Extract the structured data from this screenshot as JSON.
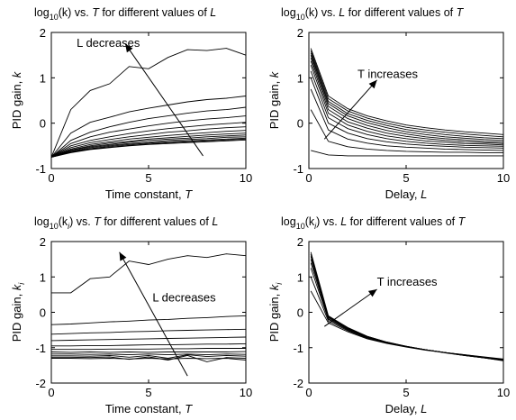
{
  "chart_data": [
    {
      "type": "line",
      "title": {
        "pre": "log",
        "sub": "10",
        "mid": "(k) vs. ",
        "v1": "T",
        "post": " for different values of ",
        "v2": "L"
      },
      "xlabel": {
        "text": "Time constant, ",
        "var": "T",
        "sub": ""
      },
      "ylabel": {
        "text": "PID gain, ",
        "var": "k",
        "sub": ""
      },
      "xlim": [
        0,
        10
      ],
      "ylim": [
        -1,
        2
      ],
      "xticks": [
        "0",
        "5",
        "10"
      ],
      "yticks": [
        "-1",
        "0",
        "1",
        "2"
      ],
      "annotation": "L decreases",
      "x": [
        0,
        1,
        2,
        3,
        4,
        5,
        6,
        7,
        8,
        9,
        10
      ],
      "series": [
        {
          "values": [
            -0.75,
            0.3,
            0.72,
            0.87,
            1.25,
            1.2,
            1.45,
            1.62,
            1.6,
            1.65,
            1.5
          ]
        },
        {
          "values": [
            -0.75,
            -0.22,
            0.02,
            0.13,
            0.25,
            0.33,
            0.4,
            0.47,
            0.52,
            0.55,
            0.6
          ]
        },
        {
          "values": [
            -0.75,
            -0.38,
            -0.2,
            -0.08,
            0.02,
            0.1,
            0.16,
            0.22,
            0.27,
            0.3,
            0.35
          ]
        },
        {
          "values": [
            -0.75,
            -0.45,
            -0.3,
            -0.2,
            -0.13,
            -0.06,
            0.0,
            0.05,
            0.09,
            0.12,
            0.16
          ]
        },
        {
          "values": [
            -0.75,
            -0.5,
            -0.38,
            -0.3,
            -0.23,
            -0.17,
            -0.12,
            -0.08,
            -0.04,
            -0.01,
            0.02
          ]
        },
        {
          "values": [
            -0.75,
            -0.54,
            -0.43,
            -0.36,
            -0.3,
            -0.25,
            -0.2,
            -0.17,
            -0.13,
            -0.1,
            -0.08
          ]
        },
        {
          "values": [
            -0.75,
            -0.57,
            -0.47,
            -0.41,
            -0.35,
            -0.31,
            -0.27,
            -0.24,
            -0.21,
            -0.18,
            -0.16
          ]
        },
        {
          "values": [
            -0.75,
            -0.59,
            -0.5,
            -0.44,
            -0.4,
            -0.35,
            -0.32,
            -0.29,
            -0.26,
            -0.24,
            -0.22
          ]
        },
        {
          "values": [
            -0.75,
            -0.6,
            -0.52,
            -0.47,
            -0.42,
            -0.38,
            -0.35,
            -0.33,
            -0.3,
            -0.28,
            -0.26
          ]
        },
        {
          "values": [
            -0.75,
            -0.62,
            -0.54,
            -0.49,
            -0.45,
            -0.42,
            -0.38,
            -0.36,
            -0.34,
            -0.31,
            -0.3
          ]
        },
        {
          "values": [
            -0.75,
            -0.63,
            -0.56,
            -0.51,
            -0.47,
            -0.44,
            -0.41,
            -0.39,
            -0.37,
            -0.35,
            -0.33
          ]
        },
        {
          "values": [
            -0.75,
            -0.64,
            -0.57,
            -0.53,
            -0.49,
            -0.46,
            -0.43,
            -0.41,
            -0.39,
            -0.37,
            -0.35
          ]
        },
        {
          "values": [
            -0.75,
            -0.65,
            -0.58,
            -0.54,
            -0.5,
            -0.47,
            -0.45,
            -0.43,
            -0.41,
            -0.39,
            -0.37
          ]
        }
      ]
    },
    {
      "type": "line",
      "title": {
        "pre": "log",
        "sub": "10",
        "mid": "(k) vs. ",
        "v1": "L",
        "post": " for different values of ",
        "v2": "T"
      },
      "xlabel": {
        "text": "Delay, ",
        "var": "L",
        "sub": ""
      },
      "ylabel": {
        "text": "PID gain, ",
        "var": "k",
        "sub": ""
      },
      "xlim": [
        0,
        10
      ],
      "ylim": [
        -1,
        2
      ],
      "xticks": [
        "0",
        "5",
        "10"
      ],
      "yticks": [
        "-1",
        "0",
        "1",
        "2"
      ],
      "annotation": "T increases",
      "x": [
        0.1,
        1,
        2,
        3,
        4,
        5,
        6,
        7,
        8,
        9,
        10
      ],
      "series": [
        {
          "values": [
            -0.6,
            -0.7,
            -0.72,
            -0.72,
            -0.72,
            -0.72,
            -0.72,
            -0.72,
            -0.72,
            -0.72,
            -0.72
          ]
        },
        {
          "values": [
            0.3,
            -0.4,
            -0.52,
            -0.57,
            -0.6,
            -0.62,
            -0.63,
            -0.64,
            -0.64,
            -0.65,
            -0.65
          ]
        },
        {
          "values": [
            0.75,
            -0.15,
            -0.35,
            -0.44,
            -0.5,
            -0.53,
            -0.55,
            -0.57,
            -0.58,
            -0.59,
            -0.6
          ]
        },
        {
          "values": [
            1.0,
            0.0,
            -0.22,
            -0.34,
            -0.41,
            -0.46,
            -0.49,
            -0.51,
            -0.53,
            -0.54,
            -0.55
          ]
        },
        {
          "values": [
            1.15,
            0.12,
            -0.12,
            -0.25,
            -0.34,
            -0.4,
            -0.44,
            -0.47,
            -0.49,
            -0.5,
            -0.51
          ]
        },
        {
          "values": [
            1.28,
            0.22,
            -0.04,
            -0.18,
            -0.28,
            -0.34,
            -0.39,
            -0.42,
            -0.45,
            -0.46,
            -0.48
          ]
        },
        {
          "values": [
            1.37,
            0.3,
            0.03,
            -0.11,
            -0.22,
            -0.29,
            -0.34,
            -0.38,
            -0.41,
            -0.43,
            -0.45
          ]
        },
        {
          "values": [
            1.44,
            0.37,
            0.1,
            -0.05,
            -0.16,
            -0.24,
            -0.3,
            -0.34,
            -0.37,
            -0.4,
            -0.42
          ]
        },
        {
          "values": [
            1.5,
            0.43,
            0.16,
            0.01,
            -0.1,
            -0.19,
            -0.25,
            -0.3,
            -0.33,
            -0.36,
            -0.38
          ]
        },
        {
          "values": [
            1.55,
            0.48,
            0.21,
            0.06,
            -0.05,
            -0.14,
            -0.2,
            -0.25,
            -0.29,
            -0.32,
            -0.34
          ]
        },
        {
          "values": [
            1.6,
            0.54,
            0.27,
            0.11,
            0.0,
            -0.09,
            -0.15,
            -0.2,
            -0.24,
            -0.27,
            -0.3
          ]
        },
        {
          "values": [
            1.65,
            0.6,
            0.32,
            0.16,
            0.05,
            -0.04,
            -0.1,
            -0.15,
            -0.19,
            -0.22,
            -0.25
          ]
        }
      ]
    },
    {
      "type": "line",
      "title": {
        "pre": "log",
        "sub": "10",
        "mid": "(k",
        "msub": "i",
        "mid2": ") vs. ",
        "v1": "T",
        "post": " for different values of ",
        "v2": "L"
      },
      "xlabel": {
        "text": "Time constant, ",
        "var": "T",
        "sub": ""
      },
      "ylabel": {
        "text": "PID gain, ",
        "var": "k",
        "sub": "i"
      },
      "xlim": [
        0,
        10
      ],
      "ylim": [
        -2,
        2
      ],
      "xticks": [
        "0",
        "5",
        "10"
      ],
      "yticks": [
        "-2",
        "-1",
        "0",
        "1",
        "2"
      ],
      "annotation": "L decreases",
      "x": [
        0,
        1,
        2,
        3,
        4,
        5,
        6,
        7,
        8,
        9,
        10
      ],
      "series": [
        {
          "values": [
            0.55,
            0.55,
            0.95,
            1.0,
            1.45,
            1.35,
            1.5,
            1.6,
            1.55,
            1.65,
            1.6
          ]
        },
        {
          "values": [
            -0.35,
            -0.33,
            -0.3,
            -0.27,
            -0.25,
            -0.22,
            -0.2,
            -0.17,
            -0.15,
            -0.12,
            -0.1
          ]
        },
        {
          "values": [
            -0.62,
            -0.6,
            -0.58,
            -0.57,
            -0.55,
            -0.54,
            -0.52,
            -0.51,
            -0.5,
            -0.49,
            -0.48
          ]
        },
        {
          "values": [
            -0.8,
            -0.79,
            -0.78,
            -0.77,
            -0.76,
            -0.75,
            -0.74,
            -0.73,
            -0.72,
            -0.71,
            -0.7
          ]
        },
        {
          "values": [
            -0.95,
            -0.95,
            -0.94,
            -0.94,
            -0.93,
            -0.92,
            -0.92,
            -0.91,
            -0.9,
            -0.9,
            -0.89
          ]
        },
        {
          "values": [
            -1.05,
            -1.05,
            -1.05,
            -1.04,
            -1.04,
            -1.04,
            -1.03,
            -1.03,
            -1.02,
            -1.02,
            -1.02
          ]
        },
        {
          "values": [
            -1.12,
            -1.13,
            -1.12,
            -1.13,
            -1.12,
            -1.13,
            -1.12,
            -1.12,
            -1.12,
            -1.12,
            -1.11
          ]
        },
        {
          "values": [
            -1.18,
            -1.18,
            -1.19,
            -1.18,
            -1.2,
            -1.18,
            -1.2,
            -1.18,
            -1.2,
            -1.18,
            -1.19
          ]
        },
        {
          "values": [
            -1.23,
            -1.23,
            -1.24,
            -1.22,
            -1.27,
            -1.22,
            -1.3,
            -1.2,
            -1.25,
            -1.22,
            -1.24
          ]
        },
        {
          "values": [
            -1.27,
            -1.27,
            -1.28,
            -1.26,
            -1.33,
            -1.26,
            -1.35,
            -1.22,
            -1.4,
            -1.28,
            -1.3
          ]
        },
        {
          "values": [
            -1.3,
            -1.3,
            -1.31,
            -1.3,
            -1.32,
            -1.3,
            -1.32,
            -1.3,
            -1.31,
            -1.3,
            -1.35
          ]
        }
      ]
    },
    {
      "type": "line",
      "title": {
        "pre": "log",
        "sub": "10",
        "mid": "(k",
        "msub": "i",
        "mid2": ") vs. ",
        "v1": "L",
        "post": " for different values of ",
        "v2": "T"
      },
      "xlabel": {
        "text": "Delay, ",
        "var": "L",
        "sub": ""
      },
      "ylabel": {
        "text": "PID gain, ",
        "var": "k",
        "sub": "i"
      },
      "xlim": [
        0,
        10
      ],
      "ylim": [
        -2,
        2
      ],
      "xticks": [
        "0",
        "5",
        "10"
      ],
      "yticks": [
        "-2",
        "-1",
        "0",
        "1",
        "2"
      ],
      "annotation": "T increases",
      "x": [
        0.1,
        1,
        2,
        3,
        4,
        5,
        6,
        7,
        8,
        9,
        10
      ],
      "series": [
        {
          "values": [
            0.6,
            -0.3,
            -0.55,
            -0.75,
            -0.88,
            -0.98,
            -1.07,
            -1.14,
            -1.2,
            -1.26,
            -1.32
          ]
        },
        {
          "values": [
            1.0,
            -0.25,
            -0.52,
            -0.73,
            -0.87,
            -0.97,
            -1.06,
            -1.14,
            -1.2,
            -1.27,
            -1.33
          ]
        },
        {
          "values": [
            1.25,
            -0.2,
            -0.5,
            -0.72,
            -0.86,
            -0.97,
            -1.06,
            -1.14,
            -1.21,
            -1.28,
            -1.34
          ]
        },
        {
          "values": [
            1.4,
            -0.18,
            -0.48,
            -0.71,
            -0.86,
            -0.97,
            -1.06,
            -1.14,
            -1.21,
            -1.28,
            -1.35
          ]
        },
        {
          "values": [
            1.5,
            -0.15,
            -0.46,
            -0.7,
            -0.85,
            -0.97,
            -1.06,
            -1.14,
            -1.21,
            -1.28,
            -1.35
          ]
        },
        {
          "values": [
            1.58,
            -0.13,
            -0.45,
            -0.69,
            -0.85,
            -0.96,
            -1.06,
            -1.14,
            -1.22,
            -1.29,
            -1.36
          ]
        },
        {
          "values": [
            1.64,
            -0.12,
            -0.44,
            -0.68,
            -0.84,
            -0.96,
            -1.06,
            -1.14,
            -1.22,
            -1.29,
            -1.36
          ]
        },
        {
          "values": [
            1.7,
            -0.1,
            -0.43,
            -0.68,
            -0.84,
            -0.96,
            -1.06,
            -1.15,
            -1.22,
            -1.29,
            -1.37
          ]
        }
      ]
    }
  ]
}
